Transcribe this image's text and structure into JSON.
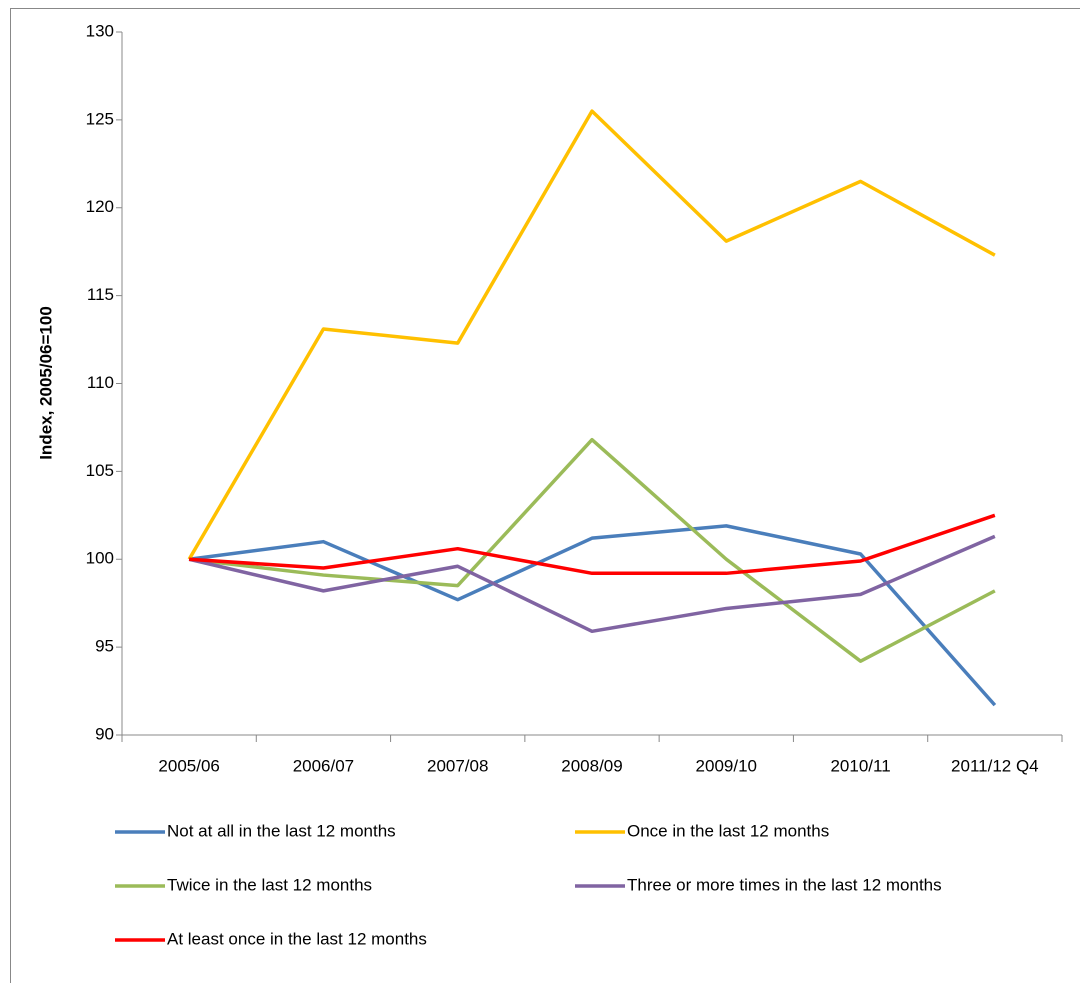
{
  "chart_data": {
    "type": "line",
    "y_label": "Index, 2005/06=100",
    "categories": [
      "2005/06",
      "2006/07",
      "2007/08",
      "2008/09",
      "2009/10",
      "2010/11",
      "2011/12 Q4"
    ],
    "series": [
      {
        "name": "Not at all in the last 12 months",
        "color": "#4a7ebb",
        "values": [
          100,
          101,
          97.7,
          101.2,
          101.9,
          100.3,
          91.7
        ]
      },
      {
        "name": "Once in the last 12 months",
        "color": "#ffc000",
        "values": [
          100,
          113.1,
          112.3,
          125.5,
          118.1,
          121.5,
          117.3
        ]
      },
      {
        "name": "Twice in the last 12 months",
        "color": "#9bbb59",
        "values": [
          100,
          99.1,
          98.5,
          106.8,
          100,
          94.2,
          98.2
        ]
      },
      {
        "name": "Three or more times in the last 12 months",
        "color": "#8064a2",
        "values": [
          100,
          98.2,
          99.6,
          95.9,
          97.2,
          98,
          101.3
        ]
      },
      {
        "name": "At least once in the last 12 months",
        "color": "#ff0000",
        "values": [
          100,
          99.5,
          100.6,
          99.2,
          99.2,
          99.9,
          102.5
        ]
      }
    ],
    "ylim": [
      90,
      130
    ],
    "yticks": [
      90,
      95,
      100,
      105,
      110,
      115,
      120,
      125,
      130
    ],
    "grid": false,
    "legend": "bottom"
  }
}
